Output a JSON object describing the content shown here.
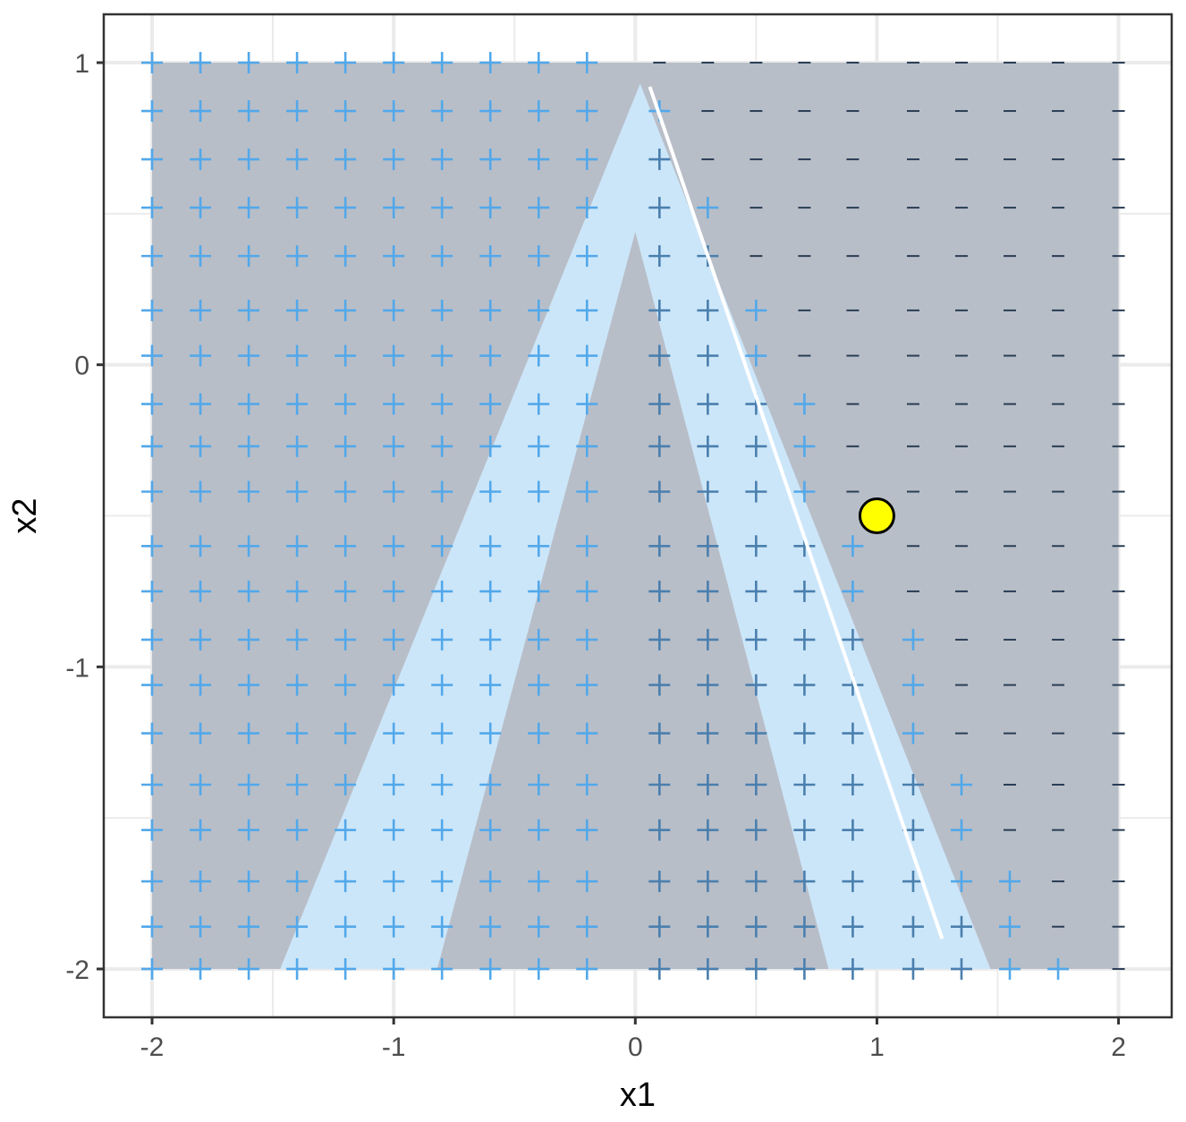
{
  "chart_data": {
    "type": "scatter",
    "title": "",
    "xlabel": "x1",
    "ylabel": "x2",
    "xlim": [
      -2.2,
      2.22
    ],
    "ylim": [
      -2.16,
      1.16
    ],
    "x_ticks": [
      -2,
      -1,
      0,
      1,
      2
    ],
    "y_ticks": [
      1,
      0,
      -1,
      -2
    ],
    "x_tick_labels": [
      "-2",
      "-1",
      "0",
      "1",
      "2"
    ],
    "y_tick_labels": [
      "1",
      "0",
      "-1",
      "-2"
    ],
    "grid": true,
    "legend": "none",
    "grid_x_values": [
      -2.0,
      -1.8,
      -1.6,
      -1.4,
      -1.2,
      -1.0,
      -0.8,
      -0.6,
      -0.4,
      -0.2,
      0.1,
      0.3,
      0.5,
      0.7,
      0.9,
      1.15,
      1.35,
      1.55,
      1.75,
      2.0
    ],
    "grid_y_values": [
      1.0,
      0.84,
      0.68,
      0.52,
      0.36,
      0.18,
      0.03,
      -0.13,
      -0.27,
      -0.42,
      -0.6,
      -0.75,
      -0.91,
      -1.06,
      -1.22,
      -1.39,
      -1.54,
      -1.71,
      -1.86,
      -2.0
    ],
    "sign_rule": "plus when x1 <= 0.05 + 0.58*(1 - x2), otherwise minus",
    "point_markers": {
      "positive": "+",
      "negative": "–"
    },
    "background_region": {
      "x": [
        -2,
        2
      ],
      "y": [
        -2,
        1
      ],
      "color": "#b8bec8"
    },
    "regions": [
      {
        "name": "outer-plus-band",
        "color": "#cce6f9",
        "polygon": [
          [
            0.02,
            0.93
          ],
          [
            -1.47,
            -2.0
          ],
          [
            1.47,
            -2.0
          ]
        ]
      },
      {
        "name": "inner-minus-band",
        "color": "#b8bec8",
        "polygon": [
          [
            0.0,
            0.44
          ],
          [
            -0.82,
            -2.0
          ],
          [
            0.8,
            -2.0
          ]
        ]
      }
    ],
    "series": [
      {
        "type": "line",
        "color": "#ffffff",
        "x": [
          0.06,
          1.27
        ],
        "y": [
          0.92,
          -1.9
        ]
      },
      {
        "type": "point",
        "color": "#ffff00",
        "x": [
          1.0
        ],
        "y": [
          -0.5
        ]
      }
    ],
    "colors": {
      "plus_outside": "#52a8ea",
      "plus_inside": "#4a7fae",
      "minus": "#2a3d55",
      "panel_border": "#333333",
      "gridline": "#ebebeb"
    }
  }
}
